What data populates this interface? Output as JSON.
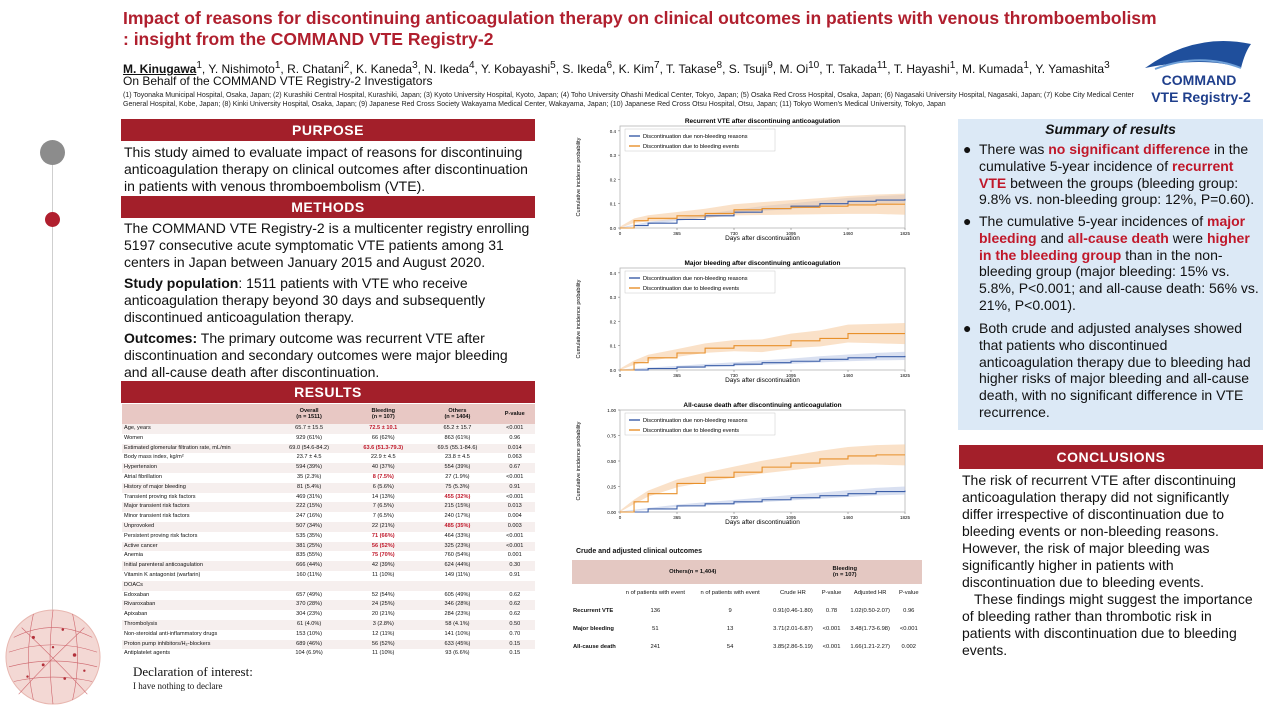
{
  "header": {
    "title_line1": "Impact of reasons for discontinuing anticoagulation therapy on clinical outcomes in patients with venous thromboembolism",
    "title_line2": ": insight from the COMMAND VTE Registry-2",
    "presenting_author": "M. Kinugawa",
    "presenting_author_sup": "1",
    "authors_rest": [
      {
        "name": "Y. Nishimoto",
        "sup": "1"
      },
      {
        "name": "R. Chatani",
        "sup": "2"
      },
      {
        "name": "K. Kaneda",
        "sup": "3"
      },
      {
        "name": "N. Ikeda",
        "sup": "4"
      },
      {
        "name": "Y. Kobayashi",
        "sup": "5"
      },
      {
        "name": "S. Ikeda",
        "sup": "6"
      },
      {
        "name": "K. Kim",
        "sup": "7"
      },
      {
        "name": "T. Takase",
        "sup": "8"
      },
      {
        "name": "S. Tsuji",
        "sup": "9"
      },
      {
        "name": "M. Oi",
        "sup": "10"
      },
      {
        "name": "T. Takada",
        "sup": "11"
      },
      {
        "name": "T. Hayashi",
        "sup": "1"
      },
      {
        "name": "M. Kumada",
        "sup": "1"
      },
      {
        "name": "Y. Yamashita",
        "sup": "3"
      }
    ],
    "on_behalf": "On Behalf of the COMMAND VTE Registry-2 Investigators",
    "affiliations": "(1) Toyonaka Municipal Hospital, Osaka, Japan; (2) Kurashiki Central Hospital, Kurashiki, Japan; (3) Kyoto University Hospital, Kyoto, Japan; (4) Toho University Ohashi Medical Center, Tokyo, Japan; (5) Osaka Red Cross Hospital, Osaka, Japan; (6) Nagasaki University Hospital, Nagasaki, Japan; (7) Kobe City Medical Center General Hospital, Kobe, Japan; (8) Kinki University Hospital, Osaka, Japan; (9) Japanese Red Cross Society Wakayama Medical Center, Wakayama, Japan; (10) Japanese Red Cross Otsu Hospital, Otsu, Japan; (11) Tokyo Women's Medical University, Tokyo, Japan",
    "logo_line1": "COMMAND",
    "logo_line2": "VTE Registry-2"
  },
  "colors": {
    "accent_red": "#a31f2a",
    "highlight_red": "#c0182a",
    "nonbleeding_blue": "#3b5ea8",
    "bleeding_orange": "#e8902a",
    "summary_bg": "#dce9f6"
  },
  "purpose": {
    "heading": "PURPOSE",
    "text": "This study aimed to evaluate impact of reasons for discontinuing anticoagulation therapy on clinical outcomes after discontinuation in patients with venous thromboembolism (VTE)."
  },
  "methods": {
    "heading": "METHODS",
    "text": "The COMMAND VTE Registry-2 is a multicenter registry enrolling 5197 consecutive acute symptomatic VTE patients among 31 centers in Japan between January 2015 and August 2020.",
    "population_label": "Study population",
    "population_text": ": 1511 patients with VTE who receive anticoagulation therapy beyond 30 days and subsequently discontinued anticoagulation therapy.",
    "outcomes_label": "Outcomes:",
    "outcomes_text": " The primary outcome was recurrent VTE after discontinuation and secondary outcomes were major bleeding and all-cause death after discontinuation."
  },
  "results": {
    "heading": "RESULTS",
    "columns": [
      "",
      "Overall\n(n = 1511)",
      "Bleeding\n(n = 107)",
      "Others\n(n = 1404)",
      "P-value"
    ],
    "rows": [
      [
        "Age, years",
        "65.7 ± 15.5",
        "72.5 ± 10.1",
        "65.2 ± 15.7",
        "<0.001"
      ],
      [
        "Women",
        "929 (61%)",
        "66 (62%)",
        "863 (61%)",
        "0.96"
      ],
      [
        "Estimated glomerular filtration rate, mL/min",
        "69.0 (54.6-84.2)",
        "63.6 (51.3-79.3)",
        "69.5 (55.1-84.6)",
        "0.014"
      ],
      [
        "Body mass index, kg/m²",
        "23.7 ± 4.5",
        "22.9 ± 4.5",
        "23.8 ± 4.5",
        "0.063"
      ],
      [
        "Hypertension",
        "594 (39%)",
        "40 (37%)",
        "554 (39%)",
        "0.67"
      ],
      [
        "Atrial fibrillation",
        "35 (2.3%)",
        "8 (7.5%)",
        "27 (1.9%)",
        "<0.001"
      ],
      [
        "History of major bleeding",
        "81 (5.4%)",
        "6 (5.6%)",
        "75 (5.3%)",
        "0.91"
      ],
      [
        "Transient proving risk factors",
        "469 (31%)",
        "14 (13%)",
        "455 (32%)",
        "<0.001"
      ],
      [
        "  Major transient risk factors",
        "222 (15%)",
        "7 (6.5%)",
        "215 (15%)",
        "0.013"
      ],
      [
        "  Minor transient risk factors",
        "247 (16%)",
        "7 (6.5%)",
        "240 (17%)",
        "0.004"
      ],
      [
        "Unprovoked",
        "507 (34%)",
        "22 (21%)",
        "485 (35%)",
        "0.003"
      ],
      [
        "Persistent proving risk factors",
        "535 (35%)",
        "71 (66%)",
        "464 (33%)",
        "<0.001"
      ],
      [
        "  Active cancer",
        "381 (25%)",
        "56 (52%)",
        "325 (23%)",
        "<0.001"
      ],
      [
        "Anemia",
        "835 (55%)",
        "75 (70%)",
        "760 (54%)",
        "0.001"
      ],
      [
        "Initial parenteral anticoagulation",
        "666 (44%)",
        "42 (39%)",
        "624 (44%)",
        "0.30"
      ],
      [
        "Vitamin K antagonist (warfarin)",
        "160 (11%)",
        "11 (10%)",
        "149 (11%)",
        "0.91"
      ],
      [
        "DOACs",
        "",
        "",
        "",
        ""
      ],
      [
        "  Edoxaban",
        "657 (49%)",
        "52 (54%)",
        "605 (49%)",
        "0.62"
      ],
      [
        "  Rivaroxaban",
        "370 (28%)",
        "24 (25%)",
        "346 (28%)",
        "0.62"
      ],
      [
        "  Apixaban",
        "304 (23%)",
        "20 (21%)",
        "284 (23%)",
        "0.62"
      ],
      [
        "Thrombolysis",
        "61 (4.0%)",
        "3 (2.8%)",
        "58 (4.1%)",
        "0.50"
      ],
      [
        "Non-steroidal anti-inflammatory drugs",
        "153 (10%)",
        "12 (11%)",
        "141 (10%)",
        "0.70"
      ],
      [
        "Proton pump inhibitors/H₂-blockers",
        "689 (46%)",
        "56 (52%)",
        "633 (45%)",
        "0.15"
      ],
      [
        "Antiplatelet agents",
        "104 (6.9%)",
        "11 (10%)",
        "93 (6.6%)",
        "0.15"
      ]
    ],
    "red_cells": [
      [
        0,
        2
      ],
      [
        2,
        2
      ],
      [
        5,
        2
      ],
      [
        7,
        3
      ],
      [
        10,
        3
      ],
      [
        11,
        2
      ],
      [
        12,
        2
      ],
      [
        13,
        2
      ]
    ]
  },
  "declaration": {
    "heading": "Declaration of interest:",
    "text": "I have nothing to declare"
  },
  "chart_data": [
    {
      "type": "line",
      "title": "Recurrent VTE after discontinuing anticoagulation",
      "xlabel": "Days after discontinuation",
      "ylabel": "Cumulative incidence probability",
      "x_ticks": [
        0,
        365,
        730,
        1095,
        1460,
        1825
      ],
      "y_ticks": [
        "0.0",
        "0.1",
        "0.2",
        "0.3",
        "0.4"
      ],
      "ylim": [
        0,
        0.42
      ],
      "xlim": [
        0,
        1825
      ],
      "legend_position": "top-left",
      "series": [
        {
          "name": "Discontinuation due non-bleeding reasons",
          "x": [
            0,
            90,
            180,
            365,
            545,
            730,
            910,
            1095,
            1280,
            1460,
            1640,
            1825
          ],
          "y": [
            0,
            0.01,
            0.02,
            0.035,
            0.05,
            0.065,
            0.08,
            0.09,
            0.1,
            0.11,
            0.115,
            0.12
          ]
        },
        {
          "name": "Discontinuation due to bleeding events",
          "x": [
            0,
            90,
            180,
            365,
            545,
            730,
            910,
            1095,
            1280,
            1460,
            1640,
            1825
          ],
          "y": [
            0,
            0.03,
            0.04,
            0.05,
            0.06,
            0.075,
            0.08,
            0.085,
            0.09,
            0.095,
            0.098,
            0.098
          ]
        }
      ]
    },
    {
      "type": "line",
      "title": "Major bleeding after discontinuing anticoagulation",
      "xlabel": "Days after discontinuation",
      "ylabel": "Cumulative incidence probability",
      "x_ticks": [
        0,
        365,
        730,
        1095,
        1460,
        1825
      ],
      "y_ticks": [
        "0.0",
        "0.1",
        "0.2",
        "0.3",
        "0.4"
      ],
      "ylim": [
        0,
        0.42
      ],
      "xlim": [
        0,
        1825
      ],
      "legend_position": "top-left",
      "series": [
        {
          "name": "Discontinuation due non-bleeding reasons",
          "x": [
            0,
            180,
            365,
            545,
            730,
            910,
            1095,
            1280,
            1460,
            1640,
            1825
          ],
          "y": [
            0,
            0.006,
            0.012,
            0.018,
            0.024,
            0.03,
            0.036,
            0.044,
            0.05,
            0.055,
            0.058
          ]
        },
        {
          "name": "Discontinuation due to bleeding events",
          "x": [
            0,
            90,
            180,
            365,
            545,
            730,
            910,
            1095,
            1280,
            1460,
            1640,
            1825
          ],
          "y": [
            0,
            0.03,
            0.05,
            0.07,
            0.09,
            0.1,
            0.1,
            0.12,
            0.13,
            0.15,
            0.15,
            0.15
          ]
        }
      ]
    },
    {
      "type": "line",
      "title": "All-cause death after discontinuing anticoagulation",
      "xlabel": "Days after discontinuation",
      "ylabel": "Cumulative incidence probability",
      "x_ticks": [
        0,
        365,
        730,
        1095,
        1460,
        1825
      ],
      "y_ticks": [
        "0.00",
        "0.25",
        "0.50",
        "0.75",
        "1.00"
      ],
      "ylim": [
        0,
        1.0
      ],
      "xlim": [
        0,
        1825
      ],
      "legend_position": "top-left",
      "series": [
        {
          "name": "Discontinuation due non-bleeding reasons",
          "x": [
            0,
            180,
            365,
            545,
            730,
            910,
            1095,
            1280,
            1460,
            1640,
            1825
          ],
          "y": [
            0,
            0.03,
            0.06,
            0.08,
            0.1,
            0.12,
            0.14,
            0.16,
            0.18,
            0.2,
            0.21
          ]
        },
        {
          "name": "Discontinuation due to bleeding events",
          "x": [
            0,
            90,
            180,
            365,
            545,
            730,
            910,
            1095,
            1280,
            1460,
            1640,
            1825
          ],
          "y": [
            0,
            0.1,
            0.18,
            0.28,
            0.34,
            0.39,
            0.44,
            0.48,
            0.52,
            0.55,
            0.56,
            0.56
          ]
        }
      ]
    }
  ],
  "outcomes_table": {
    "title": "Crude and adjusted clinical outcomes",
    "group_others": "Others(n = 1,404)",
    "group_bleeding": "Bleeding\n(n = 107)",
    "sub_headers": [
      "n of patients with event",
      "n of patients with event",
      "Crude HR",
      "P-value",
      "Adjusted HR",
      "P-value"
    ],
    "rows": [
      {
        "label": "Recurrent VTE",
        "others_n": "136",
        "bleeding_n": "9",
        "crude_hr": "0.91(0.46-1.80)",
        "crude_p": "0.78",
        "adj_hr": "1.02(0.50-2.07)",
        "adj_p": "0.96"
      },
      {
        "label": "Major bleeding",
        "others_n": "51",
        "bleeding_n": "13",
        "crude_hr": "3.71(2.01-6.87)",
        "crude_p": "<0.001",
        "adj_hr": "3.48(1.73-6.98)",
        "adj_p": "<0.001"
      },
      {
        "label": "All-cause death",
        "others_n": "241",
        "bleeding_n": "54",
        "crude_hr": "3.85(2.86-5.19)",
        "crude_p": "<0.001",
        "adj_hr": "1.66(1.21-2.27)",
        "adj_p": "0.002"
      }
    ]
  },
  "summary": {
    "title": "Summary of results",
    "bullet1_parts": [
      {
        "t": "There was "
      },
      {
        "t": "no significant difference",
        "hl": true
      },
      {
        "t": " in the cumulative 5-year incidence of "
      },
      {
        "t": "recurrent VTE",
        "hl": true
      },
      {
        "t": " between the groups (bleeding group: 9.8% vs. non-bleeding group: 12%, P=0.60)."
      }
    ],
    "bullet2_parts": [
      {
        "t": "The cumulative 5-year incidences of "
      },
      {
        "t": "major bleeding",
        "hl": true
      },
      {
        "t": " and "
      },
      {
        "t": "all-cause death",
        "hl": true
      },
      {
        "t": " were "
      },
      {
        "t": "higher in the bleeding group",
        "hl": true
      },
      {
        "t": " than in the non-bleeding group (major bleeding: 15% vs. 5.8%, P<0.001; and all-cause death: 56% vs. 21%, P<0.001)."
      }
    ],
    "bullet3_parts": [
      {
        "t": "Both crude and adjusted analyses showed that patients who discontinued anticoagulation therapy due to bleeding had higher risks of major bleeding and all-cause death, with no significant difference in VTE recurrence."
      }
    ]
  },
  "conclusions": {
    "heading": "CONCLUSIONS",
    "text1": "The risk of recurrent VTE after discontinuing anticoagulation therapy did not significantly differ irrespective of discontinuation due to bleeding events or non-bleeding reasons. However, the risk of major bleeding was significantly higher in patients with discontinuation due to bleeding events.",
    "text2": "These findings might suggest the importance of bleeding rather than thrombotic risk in patients with discontinuation due to bleeding events."
  }
}
